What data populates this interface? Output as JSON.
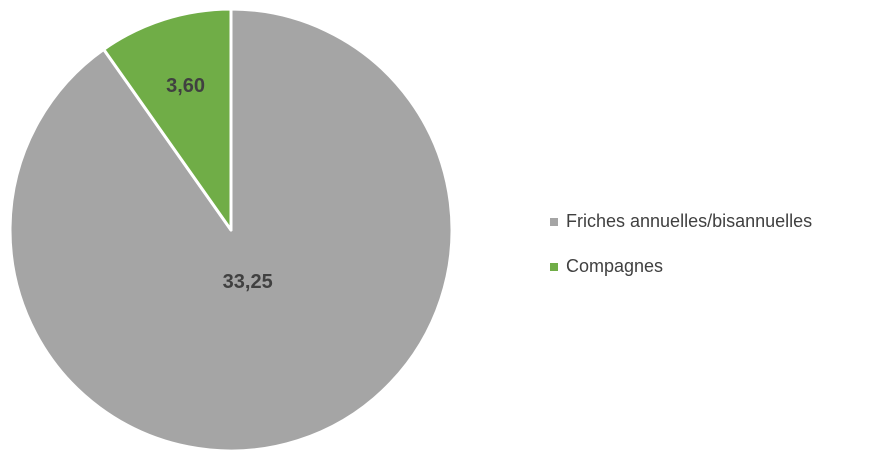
{
  "chart_data": {
    "type": "pie",
    "categories": [
      "Friches annuelles/bisannuelles",
      "Compagnes"
    ],
    "values": [
      33.25,
      3.6
    ],
    "value_labels": [
      "33,25",
      "3,60"
    ],
    "colors": [
      "#a5a5a5",
      "#70ad47"
    ],
    "legend": "right"
  }
}
